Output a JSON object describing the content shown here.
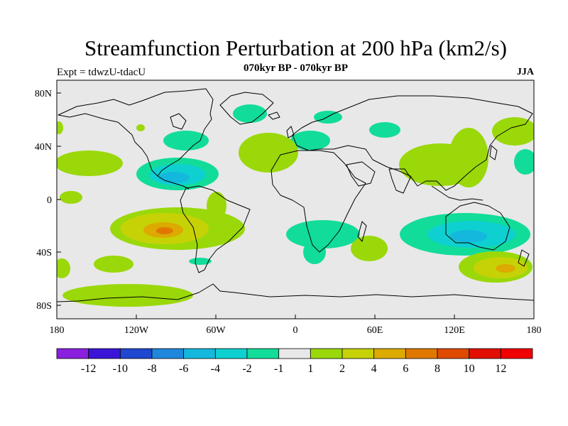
{
  "title": "Streamfunction Perturbation at 200 hPa (km2/s)",
  "subtitle": "070kyr BP - 070kyr BP",
  "left_label": "Expt = tdwzU-tdacU",
  "right_label": "JJA",
  "lat_ticks": [
    "80N",
    "40N",
    "0",
    "40S",
    "80S"
  ],
  "lon_ticks": [
    "180",
    "120W",
    "60W",
    "0",
    "60E",
    "120E",
    "180"
  ],
  "colorbar": {
    "labels": [
      "-12",
      "-10",
      "-8",
      "-6",
      "-4",
      "-2",
      "-1",
      "1",
      "2",
      "4",
      "6",
      "8",
      "10",
      "12"
    ],
    "colors": [
      "#8a1fe0",
      "#3a15d8",
      "#1f47cf",
      "#1f88dc",
      "#14b8dd",
      "#0ed0d0",
      "#12dc9a",
      "#e8e8e8",
      "#9ad80a",
      "#c6d205",
      "#dcaa00",
      "#e07800",
      "#e04a00",
      "#e20e00",
      "#f00000"
    ]
  },
  "colors": {
    "ocean_background": "#e8e8e8",
    "neg_1_2": "#12dc9a",
    "neg_2_4": "#0ed0d0",
    "neg_4_6": "#14b8dd",
    "pos_1_2": "#9ad80a",
    "pos_2_4": "#c6d205",
    "pos_4_6": "#dcaa00",
    "pos_6_8": "#e07800"
  }
}
